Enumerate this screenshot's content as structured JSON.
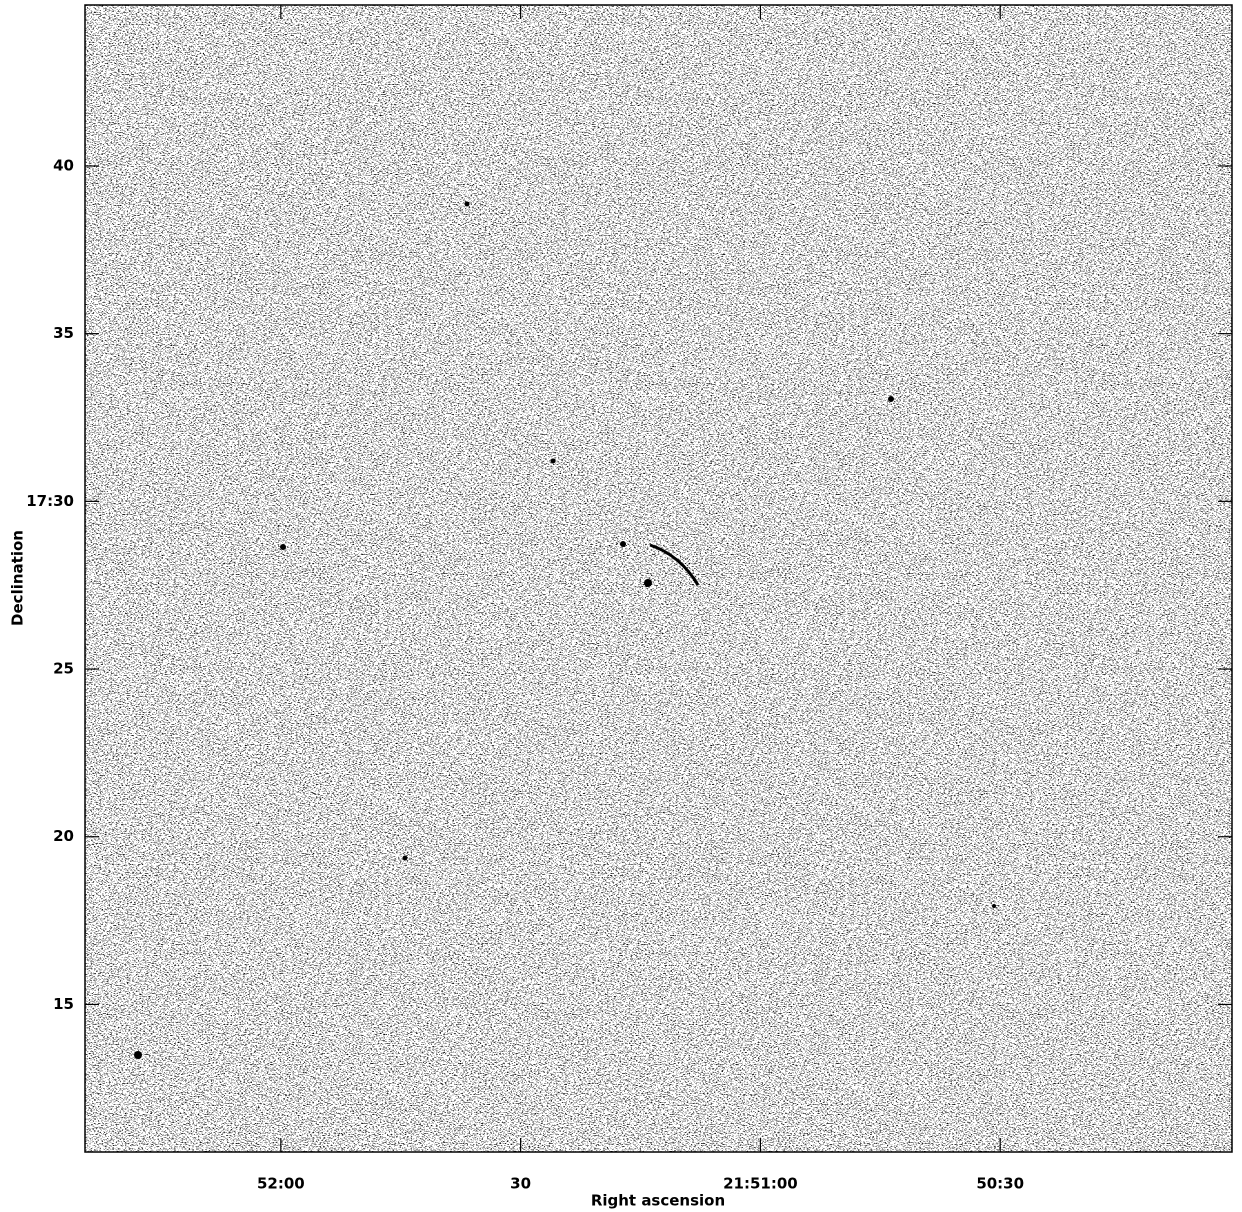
{
  "chart_data": {
    "type": "image",
    "xlabel": "Right ascension",
    "ylabel": "Declination",
    "xlim": [
      144.5,
      1.0
    ],
    "xticks": [
      {
        "value": 120,
        "label": "52:00"
      },
      {
        "value": 90,
        "label": "30"
      },
      {
        "value": 60,
        "label": "21:51:00"
      },
      {
        "value": 30,
        "label": "50:30"
      }
    ],
    "ylim": [
      10.6,
      44.8
    ],
    "yticks": [
      40,
      35,
      {
        "value": 30,
        "label": "17:30"
      },
      25,
      20,
      15
    ]
  }
}
